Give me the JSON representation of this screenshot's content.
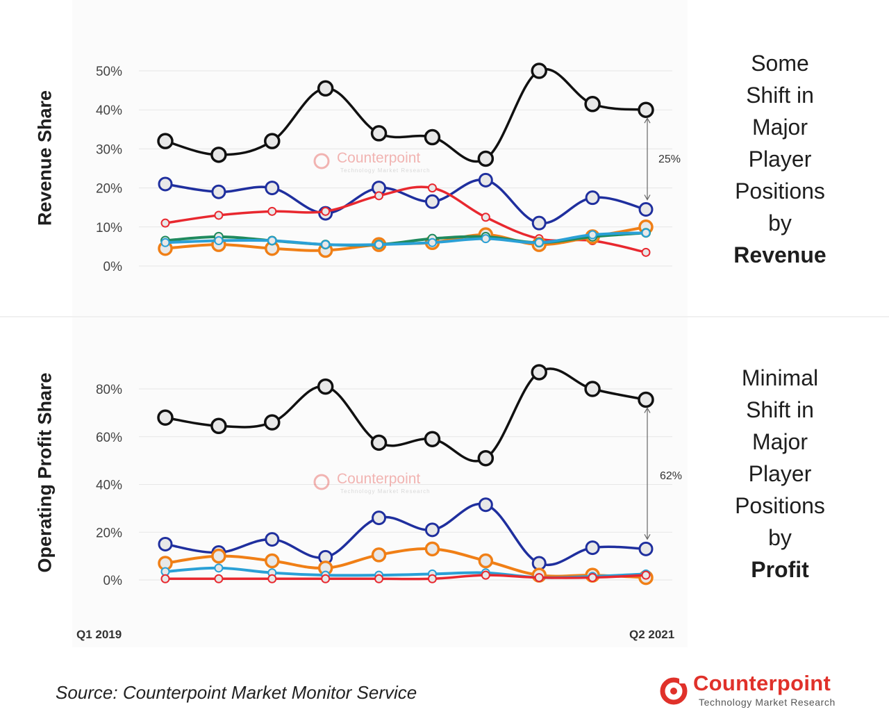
{
  "chart_data": [
    {
      "type": "line",
      "title": "",
      "ylabel": "Revenue Share",
      "ylim": [
        0,
        50
      ],
      "y_ticks": [
        "0%",
        "10%",
        "20%",
        "30%",
        "40%",
        "50%"
      ],
      "x": [
        "Q1 2019",
        "Q2 2019",
        "Q3 2019",
        "Q4 2019",
        "Q1 2020",
        "Q2 2020",
        "Q3 2020",
        "Q4 2020",
        "Q1 2021",
        "Q2 2021"
      ],
      "x_tick_labels_shown": [
        "Q1 2019",
        "Q2 2021"
      ],
      "grid": true,
      "series": [
        {
          "color": "#111111",
          "values": [
            32,
            28.5,
            32,
            45.5,
            34,
            33,
            27.5,
            50,
            41.5,
            40
          ]
        },
        {
          "color": "#1f2f9e",
          "values": [
            21,
            19,
            20,
            13.5,
            20,
            16.5,
            22,
            11,
            17.5,
            14.5
          ]
        },
        {
          "color": "#e8282f",
          "values": [
            11,
            13,
            14,
            14,
            18,
            20,
            12.5,
            7,
            6.5,
            3.5
          ]
        },
        {
          "color": "#f07f16",
          "values": [
            4.5,
            5.5,
            4.5,
            4,
            5.5,
            6,
            8,
            5.5,
            7.5,
            10
          ]
        },
        {
          "color": "#1f8a5e",
          "values": [
            6.5,
            7.5,
            6.5,
            5.5,
            5.5,
            7,
            7.5,
            6,
            7.5,
            8.5
          ]
        },
        {
          "color": "#2aa0d6",
          "values": [
            6,
            6.5,
            6.5,
            5.5,
            5.5,
            6,
            7,
            6,
            8,
            8.5
          ]
        }
      ],
      "annotation": "25%",
      "side_title": [
        "Some",
        "Shift in",
        "Major",
        "Player",
        "Positions",
        "by"
      ],
      "side_title_bold": "Revenue",
      "watermark": "Counterpoint",
      "watermark_sub": "Technology Market Research"
    },
    {
      "type": "line",
      "title": "",
      "ylabel": "Operating Profit Share",
      "ylim": [
        0,
        90
      ],
      "y_ticks": [
        "0%",
        "20%",
        "40%",
        "60%",
        "80%"
      ],
      "x": [
        "Q1 2019",
        "Q2 2019",
        "Q3 2019",
        "Q4 2019",
        "Q1 2020",
        "Q2 2020",
        "Q3 2020",
        "Q4 2020",
        "Q1 2021",
        "Q2 2021"
      ],
      "x_tick_labels_shown": [
        "Q1 2019",
        "Q2 2021"
      ],
      "grid": true,
      "series": [
        {
          "color": "#111111",
          "values": [
            68,
            64.5,
            66,
            81,
            57.5,
            59,
            51,
            87,
            80,
            75.5
          ]
        },
        {
          "color": "#1f2f9e",
          "values": [
            15,
            11.5,
            17,
            9.5,
            26,
            21,
            31.5,
            7,
            13.5,
            13
          ]
        },
        {
          "color": "#f07f16",
          "values": [
            7,
            10,
            8,
            5,
            10.5,
            13,
            8,
            2,
            2,
            1
          ]
        },
        {
          "color": "#2aa0d6",
          "values": [
            3.5,
            5,
            3,
            2,
            2,
            2.5,
            3,
            1,
            1.5,
            2.5
          ]
        },
        {
          "color": "#e8282f",
          "values": [
            0.5,
            0.5,
            0.5,
            0.5,
            0.5,
            0.5,
            2,
            1,
            1,
            2
          ]
        }
      ],
      "annotation": "62%",
      "side_title": [
        "Minimal",
        "Shift in",
        "Major",
        "Player",
        "Positions",
        "by"
      ],
      "side_title_bold": "Profit",
      "watermark": "Counterpoint",
      "watermark_sub": "Technology Market Research"
    }
  ],
  "footer": {
    "source": "Source: Counterpoint Market Monitor Service",
    "brand": "Counterpoint",
    "brand_sub": "Technology Market Research"
  }
}
